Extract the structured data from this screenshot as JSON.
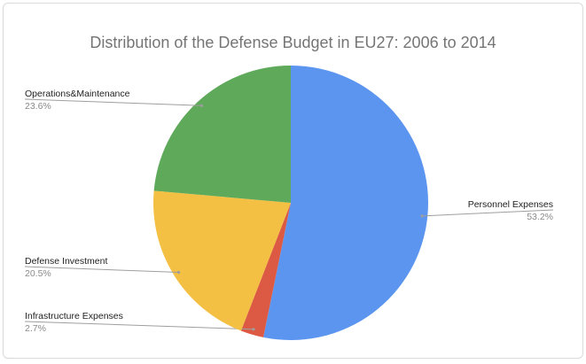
{
  "chart_data": {
    "type": "pie",
    "title": "Distribution of the Defense Budget in EU27: 2006 to 2014",
    "slices": [
      {
        "label": "Personnel Expenses",
        "value": 53.2,
        "display": "53.2%",
        "color": "#5b95ef"
      },
      {
        "label": "Infrastructure Expenses",
        "value": 2.7,
        "display": "2.7%",
        "color": "#dc5a43"
      },
      {
        "label": "Defense Investment",
        "value": 20.5,
        "display": "20.5%",
        "color": "#f3c044"
      },
      {
        "label": "Operations&Maintenance",
        "value": 23.6,
        "display": "23.6%",
        "color": "#5fa95a"
      }
    ],
    "legend": "none",
    "start_angle_deg": 0,
    "direction": "clockwise"
  }
}
